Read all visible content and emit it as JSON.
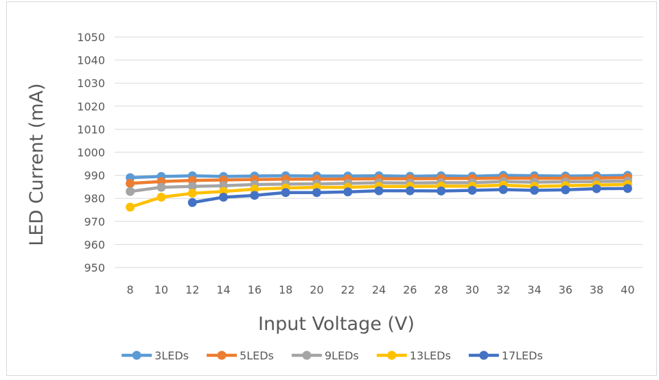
{
  "chart_data": {
    "type": "line",
    "title": "",
    "xlabel": "Input Voltage (V)",
    "ylabel": "LED Current (mA)",
    "categories": [
      "8",
      "10",
      "12",
      "14",
      "16",
      "18",
      "20",
      "22",
      "24",
      "26",
      "28",
      "30",
      "32",
      "34",
      "36",
      "38",
      "40"
    ],
    "yticks": [
      950,
      960,
      970,
      980,
      990,
      1000,
      1010,
      1020,
      1030,
      1040,
      1050
    ],
    "grid": true,
    "legend_position": "bottom",
    "series": [
      {
        "name": "3LEDs",
        "color": "#5b9bd5",
        "values": [
          989,
          989.5,
          989.8,
          989.5,
          989.7,
          989.8,
          989.7,
          989.7,
          989.8,
          989.6,
          989.8,
          989.6,
          990,
          989.8,
          989.7,
          989.8,
          990
        ]
      },
      {
        "name": "5LEDs",
        "color": "#ed7d31",
        "values": [
          986.5,
          987.3,
          987.8,
          988,
          988.2,
          988.3,
          988.3,
          988.4,
          988.5,
          988.5,
          988.6,
          988.6,
          988.8,
          988.7,
          988.7,
          988.8,
          989
        ]
      },
      {
        "name": "9LEDs",
        "color": "#a5a5a5",
        "values": [
          983,
          984.8,
          985.2,
          985.5,
          986,
          986.2,
          986.3,
          986.5,
          986.8,
          986.7,
          986.8,
          986.8,
          987.3,
          987,
          987.2,
          987.3,
          987.5
        ]
      },
      {
        "name": "13LEDs",
        "color": "#ffc000",
        "values": [
          976.2,
          980.5,
          982.2,
          983,
          984,
          984.5,
          984.8,
          984.8,
          985.2,
          985.2,
          985.3,
          985.3,
          985.7,
          985.2,
          985.5,
          985.8,
          986
        ]
      },
      {
        "name": "17LEDs",
        "color": "#4472c4",
        "values": [
          null,
          null,
          978.2,
          980.5,
          981.3,
          982.5,
          982.5,
          982.8,
          983.3,
          983.3,
          983.2,
          983.5,
          983.8,
          983.5,
          983.7,
          984.2,
          984.3
        ]
      }
    ]
  }
}
